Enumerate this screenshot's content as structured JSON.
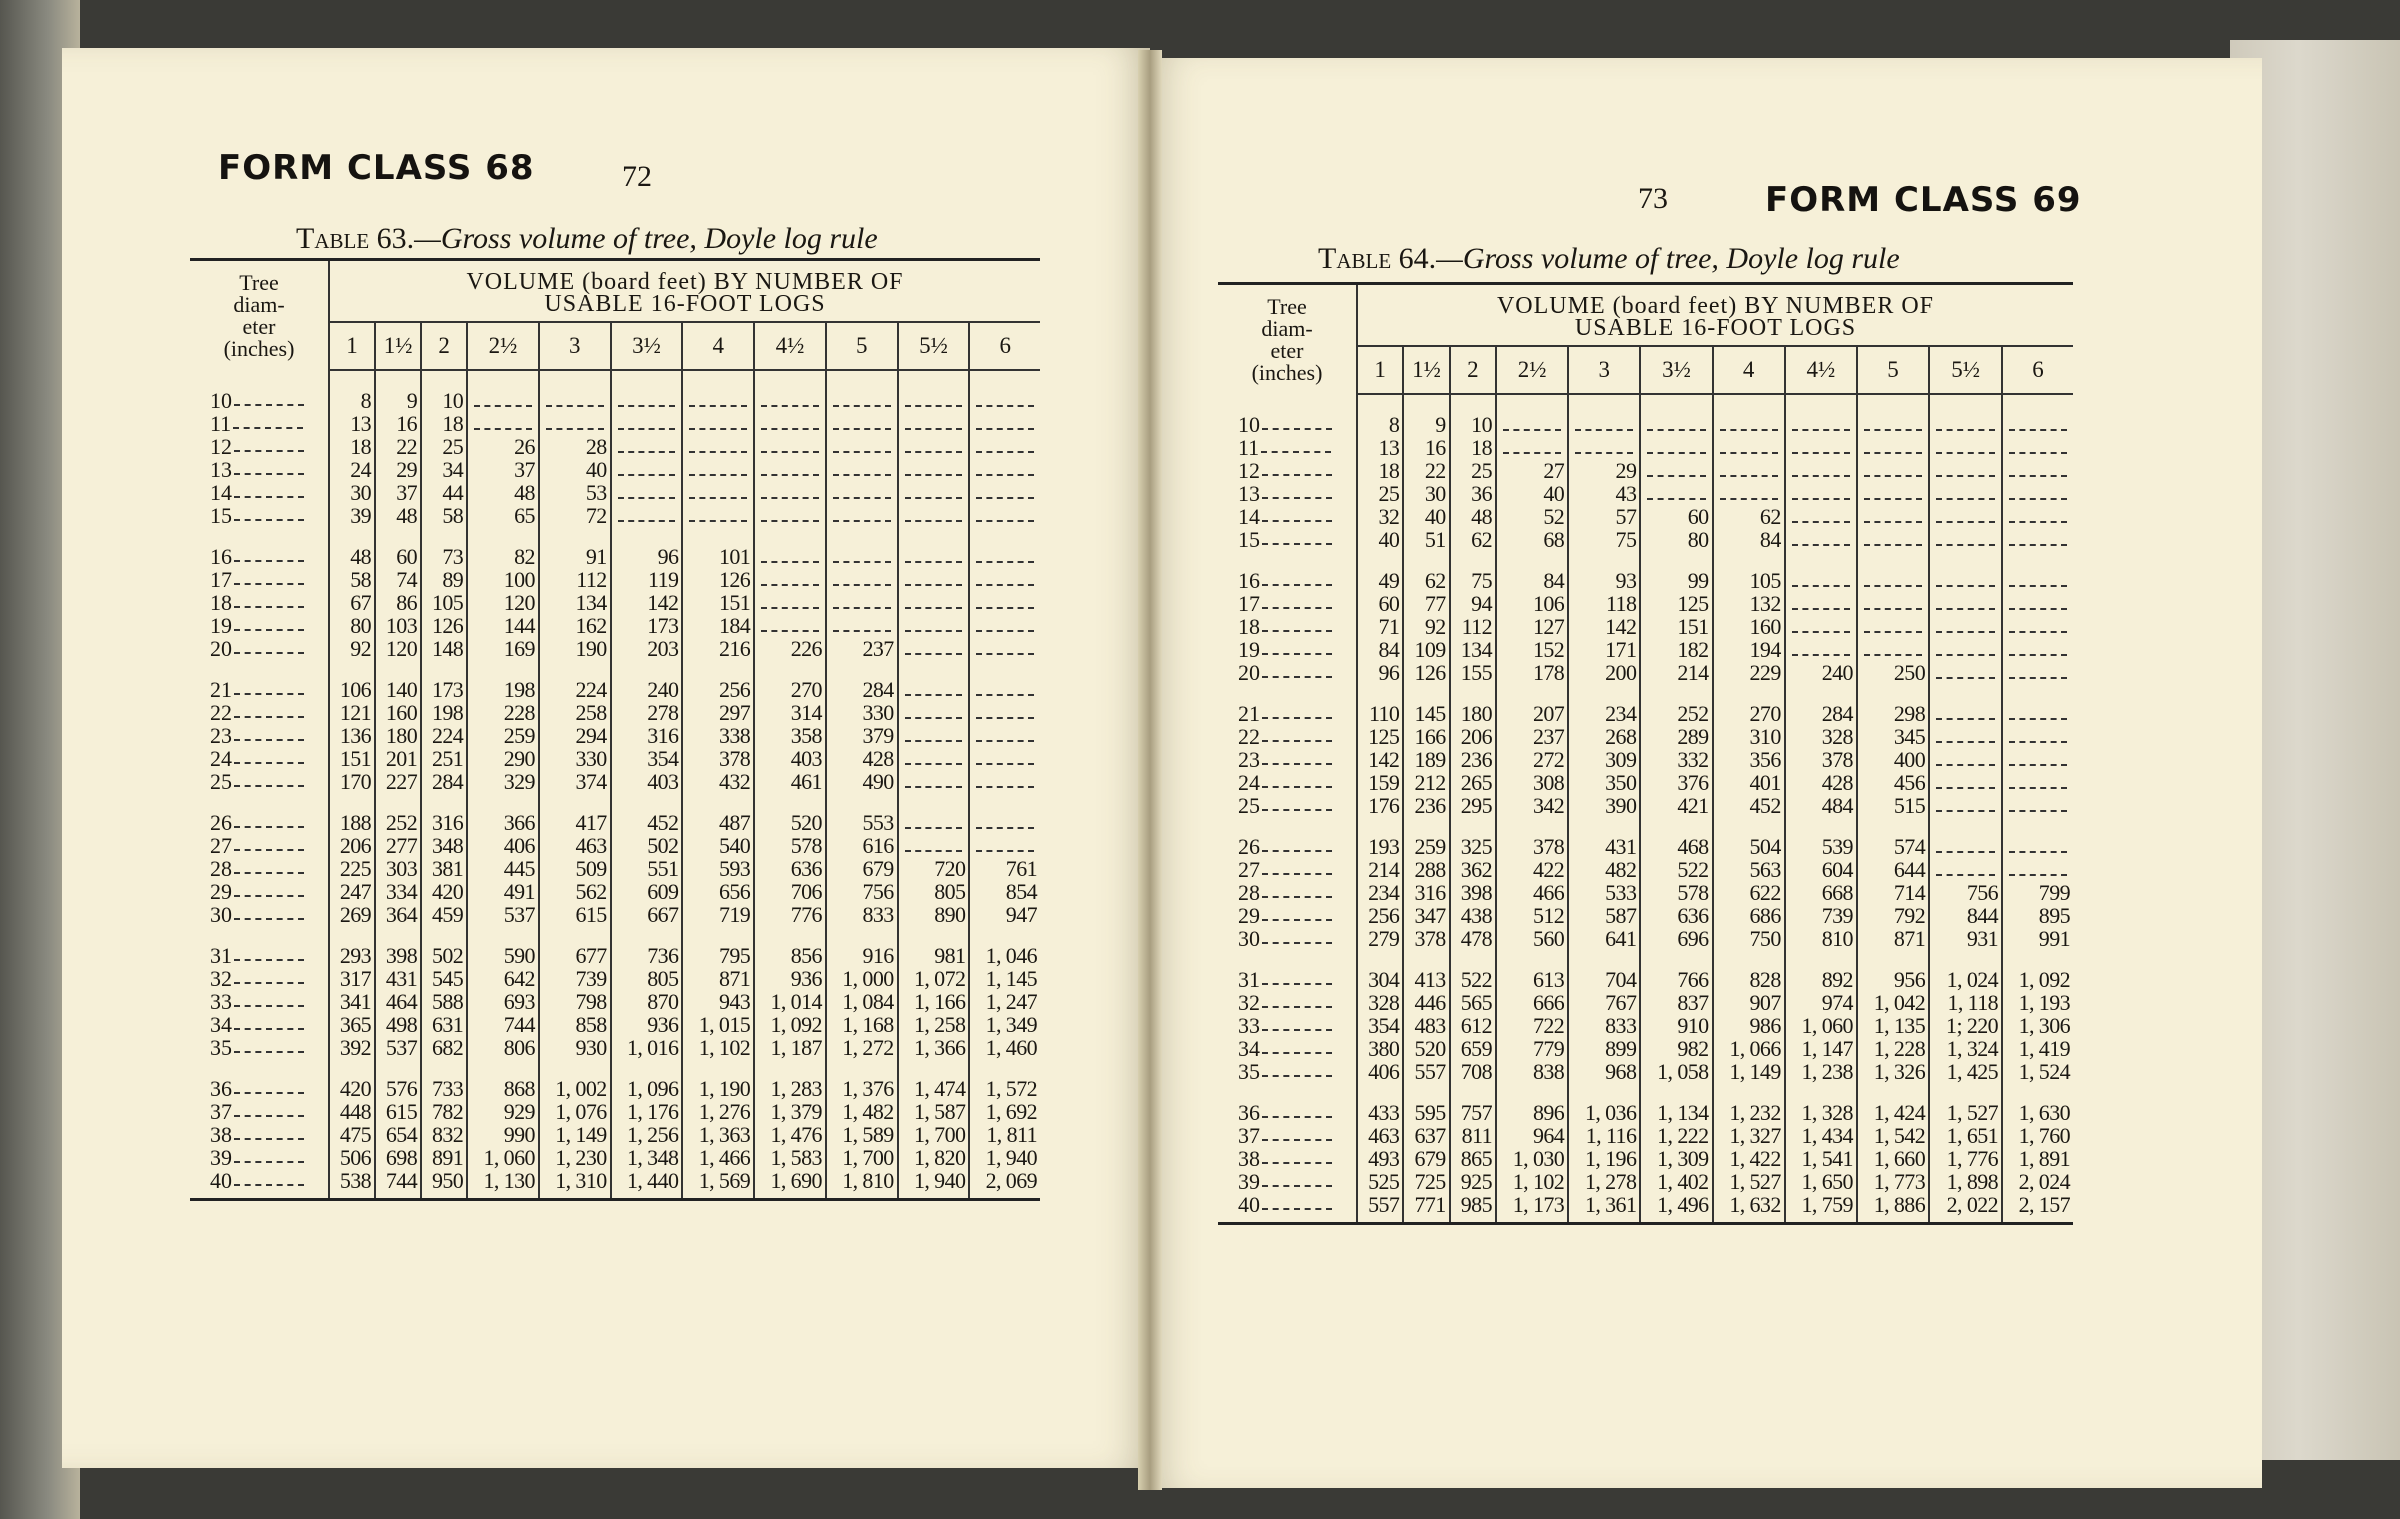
{
  "left_page": {
    "form_class": "FORM CLASS 68",
    "page_number": "72",
    "caption_label": "Table 63.",
    "caption_text": "—Gross volume of tree, Doyle log rule",
    "table": {
      "diameter_header": [
        "Tree",
        "diam-",
        "eter",
        "(inches)"
      ],
      "volume_header": [
        "VOLUME (board feet) BY NUMBER OF",
        "USABLE 16-FOOT LOGS"
      ],
      "columns": [
        "1",
        "1½",
        "2",
        "2½",
        "3",
        "3½",
        "4",
        "4½",
        "5",
        "5½",
        "6"
      ],
      "rows": [
        {
          "d": "10",
          "v": [
            "8",
            "9",
            "10",
            "",
            "",
            "",
            "",
            "",
            "",
            "",
            ""
          ]
        },
        {
          "d": "11",
          "v": [
            "13",
            "16",
            "18",
            "",
            "",
            "",
            "",
            "",
            "",
            "",
            ""
          ]
        },
        {
          "d": "12",
          "v": [
            "18",
            "22",
            "25",
            "26",
            "28",
            "",
            "",
            "",
            "",
            "",
            ""
          ]
        },
        {
          "d": "13",
          "v": [
            "24",
            "29",
            "34",
            "37",
            "40",
            "",
            "",
            "",
            "",
            "",
            ""
          ]
        },
        {
          "d": "14",
          "v": [
            "30",
            "37",
            "44",
            "48",
            "53",
            "",
            "",
            "",
            "",
            "",
            ""
          ]
        },
        {
          "d": "15",
          "v": [
            "39",
            "48",
            "58",
            "65",
            "72",
            "",
            "",
            "",
            "",
            "",
            ""
          ]
        },
        {
          "d": "16",
          "v": [
            "48",
            "60",
            "73",
            "82",
            "91",
            "96",
            "101",
            "",
            "",
            "",
            ""
          ]
        },
        {
          "d": "17",
          "v": [
            "58",
            "74",
            "89",
            "100",
            "112",
            "119",
            "126",
            "",
            "",
            "",
            ""
          ]
        },
        {
          "d": "18",
          "v": [
            "67",
            "86",
            "105",
            "120",
            "134",
            "142",
            "151",
            "",
            "",
            "",
            ""
          ]
        },
        {
          "d": "19",
          "v": [
            "80",
            "103",
            "126",
            "144",
            "162",
            "173",
            "184",
            "",
            "",
            "",
            ""
          ]
        },
        {
          "d": "20",
          "v": [
            "92",
            "120",
            "148",
            "169",
            "190",
            "203",
            "216",
            "226",
            "237",
            "",
            ""
          ]
        },
        {
          "d": "21",
          "v": [
            "106",
            "140",
            "173",
            "198",
            "224",
            "240",
            "256",
            "270",
            "284",
            "",
            ""
          ]
        },
        {
          "d": "22",
          "v": [
            "121",
            "160",
            "198",
            "228",
            "258",
            "278",
            "297",
            "314",
            "330",
            "",
            ""
          ]
        },
        {
          "d": "23",
          "v": [
            "136",
            "180",
            "224",
            "259",
            "294",
            "316",
            "338",
            "358",
            "379",
            "",
            ""
          ]
        },
        {
          "d": "24",
          "v": [
            "151",
            "201",
            "251",
            "290",
            "330",
            "354",
            "378",
            "403",
            "428",
            "",
            ""
          ]
        },
        {
          "d": "25",
          "v": [
            "170",
            "227",
            "284",
            "329",
            "374",
            "403",
            "432",
            "461",
            "490",
            "",
            ""
          ]
        },
        {
          "d": "26",
          "v": [
            "188",
            "252",
            "316",
            "366",
            "417",
            "452",
            "487",
            "520",
            "553",
            "",
            ""
          ]
        },
        {
          "d": "27",
          "v": [
            "206",
            "277",
            "348",
            "406",
            "463",
            "502",
            "540",
            "578",
            "616",
            "",
            ""
          ]
        },
        {
          "d": "28",
          "v": [
            "225",
            "303",
            "381",
            "445",
            "509",
            "551",
            "593",
            "636",
            "679",
            "720",
            "761"
          ]
        },
        {
          "d": "29",
          "v": [
            "247",
            "334",
            "420",
            "491",
            "562",
            "609",
            "656",
            "706",
            "756",
            "805",
            "854"
          ]
        },
        {
          "d": "30",
          "v": [
            "269",
            "364",
            "459",
            "537",
            "615",
            "667",
            "719",
            "776",
            "833",
            "890",
            "947"
          ]
        },
        {
          "d": "31",
          "v": [
            "293",
            "398",
            "502",
            "590",
            "677",
            "736",
            "795",
            "856",
            "916",
            "981",
            "1, 046"
          ]
        },
        {
          "d": "32",
          "v": [
            "317",
            "431",
            "545",
            "642",
            "739",
            "805",
            "871",
            "936",
            "1, 000",
            "1, 072",
            "1, 145"
          ]
        },
        {
          "d": "33",
          "v": [
            "341",
            "464",
            "588",
            "693",
            "798",
            "870",
            "943",
            "1, 014",
            "1, 084",
            "1, 166",
            "1, 247"
          ]
        },
        {
          "d": "34",
          "v": [
            "365",
            "498",
            "631",
            "744",
            "858",
            "936",
            "1, 015",
            "1, 092",
            "1, 168",
            "1, 258",
            "1, 349"
          ]
        },
        {
          "d": "35",
          "v": [
            "392",
            "537",
            "682",
            "806",
            "930",
            "1, 016",
            "1, 102",
            "1, 187",
            "1, 272",
            "1, 366",
            "1, 460"
          ]
        },
        {
          "d": "36",
          "v": [
            "420",
            "576",
            "733",
            "868",
            "1, 002",
            "1, 096",
            "1, 190",
            "1, 283",
            "1, 376",
            "1, 474",
            "1, 572"
          ]
        },
        {
          "d": "37",
          "v": [
            "448",
            "615",
            "782",
            "929",
            "1, 076",
            "1, 176",
            "1, 276",
            "1, 379",
            "1, 482",
            "1, 587",
            "1, 692"
          ]
        },
        {
          "d": "38",
          "v": [
            "475",
            "654",
            "832",
            "990",
            "1, 149",
            "1, 256",
            "1, 363",
            "1, 476",
            "1, 589",
            "1, 700",
            "1, 811"
          ]
        },
        {
          "d": "39",
          "v": [
            "506",
            "698",
            "891",
            "1, 060",
            "1, 230",
            "1, 348",
            "1, 466",
            "1, 583",
            "1, 700",
            "1, 820",
            "1, 940"
          ]
        },
        {
          "d": "40",
          "v": [
            "538",
            "744",
            "950",
            "1, 130",
            "1, 310",
            "1, 440",
            "1, 569",
            "1, 690",
            "1, 810",
            "1, 940",
            "2, 069"
          ]
        }
      ]
    }
  },
  "right_page": {
    "form_class": "FORM CLASS 69",
    "page_number": "73",
    "caption_label": "Table 64.",
    "caption_text": "—Gross volume of tree, Doyle log rule",
    "table": {
      "diameter_header": [
        "Tree",
        "diam-",
        "eter",
        "(inches)"
      ],
      "volume_header": [
        "VOLUME (board feet) BY NUMBER OF",
        "USABLE 16-FOOT LOGS"
      ],
      "columns": [
        "1",
        "1½",
        "2",
        "2½",
        "3",
        "3½",
        "4",
        "4½",
        "5",
        "5½",
        "6"
      ],
      "rows": [
        {
          "d": "10",
          "v": [
            "8",
            "9",
            "10",
            "",
            "",
            "",
            "",
            "",
            "",
            "",
            ""
          ]
        },
        {
          "d": "11",
          "v": [
            "13",
            "16",
            "18",
            "",
            "",
            "",
            "",
            "",
            "",
            "",
            ""
          ]
        },
        {
          "d": "12",
          "v": [
            "18",
            "22",
            "25",
            "27",
            "29",
            "",
            "",
            "",
            "",
            "",
            ""
          ]
        },
        {
          "d": "13",
          "v": [
            "25",
            "30",
            "36",
            "40",
            "43",
            "",
            "",
            "",
            "",
            "",
            ""
          ]
        },
        {
          "d": "14",
          "v": [
            "32",
            "40",
            "48",
            "52",
            "57",
            "60",
            "62",
            "",
            "",
            "",
            ""
          ]
        },
        {
          "d": "15",
          "v": [
            "40",
            "51",
            "62",
            "68",
            "75",
            "80",
            "84",
            "",
            "",
            "",
            ""
          ]
        },
        {
          "d": "16",
          "v": [
            "49",
            "62",
            "75",
            "84",
            "93",
            "99",
            "105",
            "",
            "",
            "",
            ""
          ]
        },
        {
          "d": "17",
          "v": [
            "60",
            "77",
            "94",
            "106",
            "118",
            "125",
            "132",
            "",
            "",
            "",
            ""
          ]
        },
        {
          "d": "18",
          "v": [
            "71",
            "92",
            "112",
            "127",
            "142",
            "151",
            "160",
            "",
            "",
            "",
            ""
          ]
        },
        {
          "d": "19",
          "v": [
            "84",
            "109",
            "134",
            "152",
            "171",
            "182",
            "194",
            "",
            "",
            "",
            ""
          ]
        },
        {
          "d": "20",
          "v": [
            "96",
            "126",
            "155",
            "178",
            "200",
            "214",
            "229",
            "240",
            "250",
            "",
            ""
          ]
        },
        {
          "d": "21",
          "v": [
            "110",
            "145",
            "180",
            "207",
            "234",
            "252",
            "270",
            "284",
            "298",
            "",
            ""
          ]
        },
        {
          "d": "22",
          "v": [
            "125",
            "166",
            "206",
            "237",
            "268",
            "289",
            "310",
            "328",
            "345",
            "",
            ""
          ]
        },
        {
          "d": "23",
          "v": [
            "142",
            "189",
            "236",
            "272",
            "309",
            "332",
            "356",
            "378",
            "400",
            "",
            ""
          ]
        },
        {
          "d": "24",
          "v": [
            "159",
            "212",
            "265",
            "308",
            "350",
            "376",
            "401",
            "428",
            "456",
            "",
            ""
          ]
        },
        {
          "d": "25",
          "v": [
            "176",
            "236",
            "295",
            "342",
            "390",
            "421",
            "452",
            "484",
            "515",
            "",
            ""
          ]
        },
        {
          "d": "26",
          "v": [
            "193",
            "259",
            "325",
            "378",
            "431",
            "468",
            "504",
            "539",
            "574",
            "",
            ""
          ]
        },
        {
          "d": "27",
          "v": [
            "214",
            "288",
            "362",
            "422",
            "482",
            "522",
            "563",
            "604",
            "644",
            "",
            ""
          ]
        },
        {
          "d": "28",
          "v": [
            "234",
            "316",
            "398",
            "466",
            "533",
            "578",
            "622",
            "668",
            "714",
            "756",
            "799"
          ]
        },
        {
          "d": "29",
          "v": [
            "256",
            "347",
            "438",
            "512",
            "587",
            "636",
            "686",
            "739",
            "792",
            "844",
            "895"
          ]
        },
        {
          "d": "30",
          "v": [
            "279",
            "378",
            "478",
            "560",
            "641",
            "696",
            "750",
            "810",
            "871",
            "931",
            "991"
          ]
        },
        {
          "d": "31",
          "v": [
            "304",
            "413",
            "522",
            "613",
            "704",
            "766",
            "828",
            "892",
            "956",
            "1, 024",
            "1, 092"
          ]
        },
        {
          "d": "32",
          "v": [
            "328",
            "446",
            "565",
            "666",
            "767",
            "837",
            "907",
            "974",
            "1, 042",
            "1, 118",
            "1, 193"
          ]
        },
        {
          "d": "33",
          "v": [
            "354",
            "483",
            "612",
            "722",
            "833",
            "910",
            "986",
            "1, 060",
            "1, 135",
            "1; 220",
            "1, 306"
          ]
        },
        {
          "d": "34",
          "v": [
            "380",
            "520",
            "659",
            "779",
            "899",
            "982",
            "1, 066",
            "1, 147",
            "1, 228",
            "1, 324",
            "1, 419"
          ]
        },
        {
          "d": "35",
          "v": [
            "406",
            "557",
            "708",
            "838",
            "968",
            "1, 058",
            "1, 149",
            "1, 238",
            "1, 326",
            "1, 425",
            "1, 524"
          ]
        },
        {
          "d": "36",
          "v": [
            "433",
            "595",
            "757",
            "896",
            "1, 036",
            "1, 134",
            "1, 232",
            "1, 328",
            "1, 424",
            "1, 527",
            "1, 630"
          ]
        },
        {
          "d": "37",
          "v": [
            "463",
            "637",
            "811",
            "964",
            "1, 116",
            "1, 222",
            "1, 327",
            "1, 434",
            "1, 542",
            "1, 651",
            "1, 760"
          ]
        },
        {
          "d": "38",
          "v": [
            "493",
            "679",
            "865",
            "1, 030",
            "1, 196",
            "1, 309",
            "1, 422",
            "1, 541",
            "1, 660",
            "1, 776",
            "1, 891"
          ]
        },
        {
          "d": "39",
          "v": [
            "525",
            "725",
            "925",
            "1, 102",
            "1, 278",
            "1, 402",
            "1, 527",
            "1, 650",
            "1, 773",
            "1, 898",
            "2, 024"
          ]
        },
        {
          "d": "40",
          "v": [
            "557",
            "771",
            "985",
            "1, 173",
            "1, 361",
            "1, 496",
            "1, 632",
            "1, 759",
            "1, 886",
            "2, 022",
            "2, 157"
          ]
        }
      ]
    }
  },
  "colors": {
    "paper": "#f6f0d8",
    "ink": "#1a1712",
    "cloth": "#d4cfc0"
  }
}
